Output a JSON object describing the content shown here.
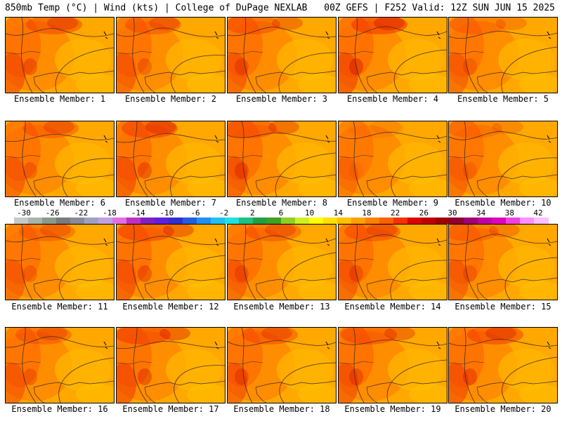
{
  "header": {
    "title_left": "850mb Temp (°C) | Wind (kts) | College of DuPage NEXLAB",
    "title_right": "00Z GEFS | F252 Valid: 12Z SUN JUN 15 2025"
  },
  "members": [
    {
      "label": "Ensemble Member: 1",
      "hot": 0.55
    },
    {
      "label": "Ensemble Member: 2",
      "hot": 0.45
    },
    {
      "label": "Ensemble Member: 3",
      "hot": 0.5
    },
    {
      "label": "Ensemble Member: 4",
      "hot": 0.7
    },
    {
      "label": "Ensemble Member: 5",
      "hot": 0.35
    },
    {
      "label": "Ensemble Member: 6",
      "hot": 0.45
    },
    {
      "label": "Ensemble Member: 7",
      "hot": 0.6
    },
    {
      "label": "Ensemble Member: 8",
      "hot": 0.55
    },
    {
      "label": "Ensemble Member: 9",
      "hot": 0.15
    },
    {
      "label": "Ensemble Member: 10",
      "hot": 0.3
    },
    {
      "label": "Ensemble Member: 11",
      "hot": 0.4
    },
    {
      "label": "Ensemble Member: 12",
      "hot": 0.6
    },
    {
      "label": "Ensemble Member: 13",
      "hot": 0.45
    },
    {
      "label": "Ensemble Member: 14",
      "hot": 0.5
    },
    {
      "label": "Ensemble Member: 15",
      "hot": 0.4
    },
    {
      "label": "Ensemble Member: 16",
      "hot": 0.45
    },
    {
      "label": "Ensemble Member: 17",
      "hot": 0.65
    },
    {
      "label": "Ensemble Member: 18",
      "hot": 0.5
    },
    {
      "label": "Ensemble Member: 19",
      "hot": 0.55
    },
    {
      "label": "Ensemble Member: 20",
      "hot": 0.6
    }
  ],
  "colorbar": {
    "ticks": [
      "-30",
      "-26",
      "-22",
      "-18",
      "-14",
      "-10",
      "-6",
      "-2",
      "2",
      "6",
      "10",
      "14",
      "18",
      "22",
      "26",
      "30",
      "34",
      "38",
      "42"
    ],
    "colors": [
      "#c8c8c8",
      "#a8b4a8",
      "#8a9a8a",
      "#7a7a7a",
      "#8a8a9a",
      "#a0a0c0",
      "#c0a0e0",
      "#e070e0",
      "#c030c0",
      "#8020c0",
      "#6020e0",
      "#3030d0",
      "#2060e0",
      "#2090f0",
      "#20c0f0",
      "#20e0e0",
      "#20c080",
      "#20a040",
      "#40a020",
      "#90d020",
      "#d0f020",
      "#ffff00",
      "#ffe000",
      "#ffc000",
      "#ffa000",
      "#ff8000",
      "#ff6000",
      "#f83000",
      "#e00000",
      "#c00000",
      "#a00000",
      "#900030",
      "#a00070",
      "#c000a0",
      "#e000c0",
      "#f040e0",
      "#ff90ff",
      "#ffc0ff"
    ]
  }
}
